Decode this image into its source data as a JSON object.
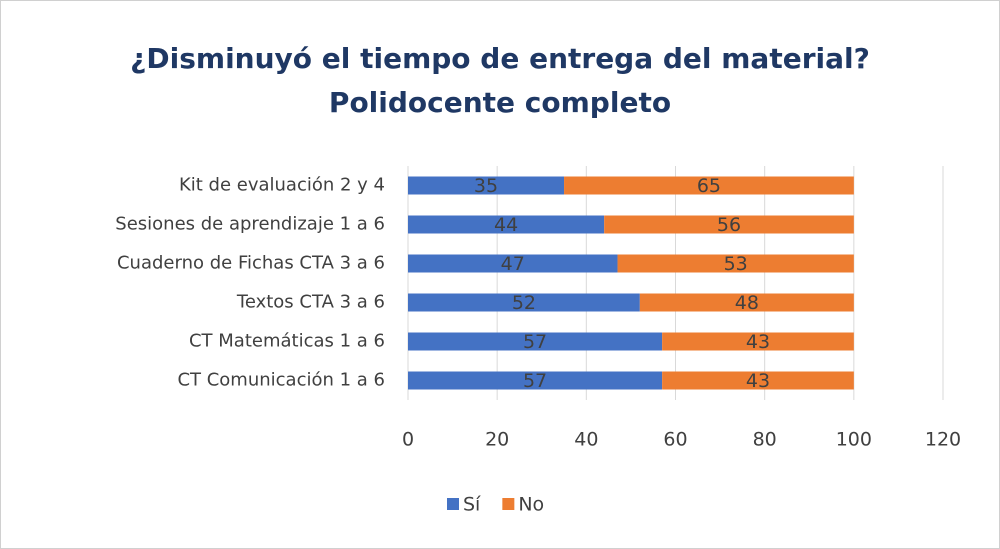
{
  "chart_data": {
    "type": "stacked_bar_horizontal",
    "title": "¿Disminuyó el tiempo de entrega del material?",
    "subtitle": "Polidocente completo",
    "categories": [
      "Kit de evaluación 2 y 4",
      "Sesiones de aprendizaje 1 a 6",
      "Cuaderno de Fichas CTA 3 a 6",
      "Textos CTA 3 a 6",
      "CT Matemáticas 1 a 6",
      "CT Comunicación 1 a 6"
    ],
    "series": [
      {
        "name": "Sí",
        "color": "#4472c4",
        "values": [
          35,
          44,
          47,
          52,
          57,
          57
        ]
      },
      {
        "name": "No",
        "color": "#ed7d31",
        "values": [
          65,
          56,
          53,
          48,
          43,
          43
        ]
      }
    ],
    "xlim": [
      0,
      120
    ],
    "xticks": [
      0,
      20,
      40,
      60,
      80,
      100,
      120
    ],
    "grid": true,
    "legend": "bottom"
  }
}
